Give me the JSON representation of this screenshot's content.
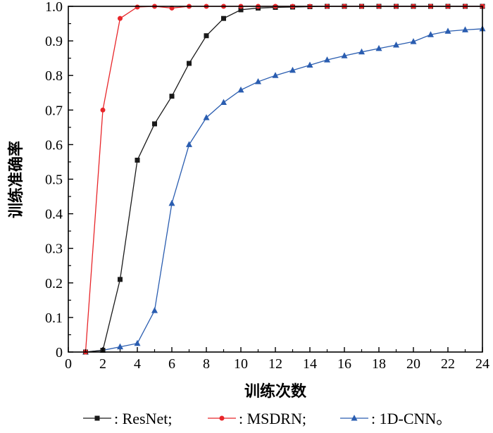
{
  "chart_data": {
    "type": "line",
    "xlabel": "训练次数",
    "ylabel": "训练准确率",
    "xlim": [
      0,
      24
    ],
    "ylim": [
      0,
      1.0
    ],
    "xticks": [
      "0",
      "2",
      "4",
      "6",
      "8",
      "10",
      "12",
      "14",
      "16",
      "18",
      "20",
      "22",
      "24"
    ],
    "yticks": [
      "0",
      "0.1",
      "0.2",
      "0.3",
      "0.4",
      "0.5",
      "0.6",
      "0.7",
      "0.8",
      "0.9",
      "1.0"
    ],
    "grid": false,
    "legend_position": "bottom",
    "series": [
      {
        "name": ": ResNet;",
        "color": "#1a1a1a",
        "marker": "square",
        "x": [
          1,
          2,
          3,
          4,
          5,
          6,
          7,
          8,
          9,
          10,
          11,
          12,
          13,
          14,
          15,
          16,
          17,
          18,
          19,
          20,
          21,
          22,
          23,
          24
        ],
        "y": [
          0.0,
          0.005,
          0.21,
          0.555,
          0.66,
          0.74,
          0.835,
          0.915,
          0.965,
          0.99,
          0.995,
          0.997,
          0.998,
          0.999,
          1.0,
          1.0,
          1.0,
          1.0,
          1.0,
          1.0,
          1.0,
          1.0,
          1.0,
          1.0
        ]
      },
      {
        "name": ": MSDRN;",
        "color": "#e8262a",
        "marker": "circle",
        "x": [
          1,
          2,
          3,
          4,
          5,
          6,
          7,
          8,
          9,
          10,
          11,
          12,
          13,
          14,
          15,
          16,
          17,
          18,
          19,
          20,
          21,
          22,
          23,
          24
        ],
        "y": [
          0.0,
          0.7,
          0.965,
          0.998,
          1.0,
          0.995,
          1.0,
          1.0,
          1.0,
          1.0,
          1.0,
          1.0,
          1.0,
          1.0,
          1.0,
          1.0,
          1.0,
          1.0,
          1.0,
          1.0,
          1.0,
          1.0,
          1.0,
          1.0
        ]
      },
      {
        "name": ": 1D-CNN。",
        "color": "#2a5db0",
        "marker": "triangle",
        "x": [
          1,
          2,
          3,
          4,
          5,
          6,
          7,
          8,
          9,
          10,
          11,
          12,
          13,
          14,
          15,
          16,
          17,
          18,
          19,
          20,
          21,
          22,
          23,
          24
        ],
        "y": [
          0.0,
          0.005,
          0.015,
          0.025,
          0.12,
          0.43,
          0.6,
          0.678,
          0.722,
          0.758,
          0.782,
          0.8,
          0.815,
          0.83,
          0.845,
          0.857,
          0.868,
          0.878,
          0.888,
          0.898,
          0.918,
          0.928,
          0.932,
          0.935
        ]
      }
    ]
  }
}
